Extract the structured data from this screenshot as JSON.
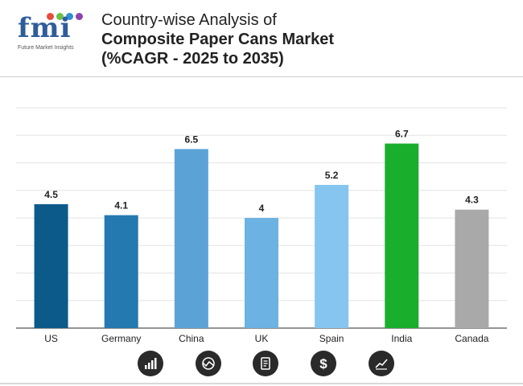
{
  "header": {
    "logo_text": "fmi",
    "logo_subtitle": "Future Market Insights",
    "title_line1": "Country-wise Analysis of",
    "title_line2": "Composite Paper Cans Market",
    "title_line3": "(%CAGR - 2025 to 2035)"
  },
  "colors": {
    "logo_blue": "#2f5d9b",
    "logo_dots": [
      "#e74c3c",
      "#6dbf4b",
      "#2f8fd6",
      "#8e44ad"
    ]
  },
  "icons": [
    "bar-chart-icon",
    "globe-trend-icon",
    "report-icon",
    "dollar-icon",
    "line-chart-icon"
  ],
  "chart_data": {
    "type": "bar",
    "categories": [
      "US",
      "Germany",
      "China",
      "UK",
      "Spain",
      "India",
      "Canada"
    ],
    "values": [
      4.5,
      4.1,
      6.5,
      4,
      5.2,
      6.7,
      4.3
    ],
    "value_labels": [
      "4.5",
      "4.1",
      "6.5",
      "4",
      "5.2",
      "6.7",
      "4.3"
    ],
    "bar_colors": [
      "#0c5a8a",
      "#2379b0",
      "#5ba3d7",
      "#6cb2e3",
      "#85c5ef",
      "#1aae2d",
      "#a9a9a9"
    ],
    "ylim": [
      0,
      8
    ],
    "grid": true,
    "axis_labels_visible": false,
    "title": "",
    "xlabel": "",
    "ylabel": ""
  }
}
